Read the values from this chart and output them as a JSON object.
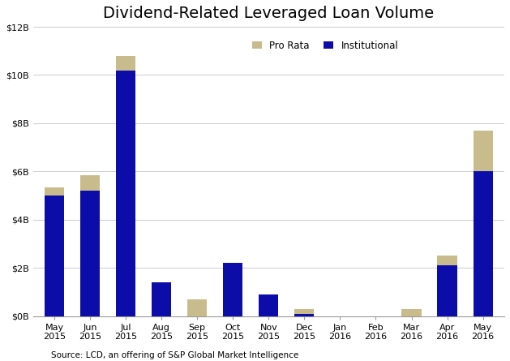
{
  "title": "Dividend-Related Leveraged Loan Volume",
  "categories": [
    "May\n2015",
    "Jun\n2015",
    "Jul\n2015",
    "Aug\n2015",
    "Sep\n2015",
    "Oct\n2015",
    "Nov\n2015",
    "Dec\n2015",
    "Jan\n2016",
    "Feb\n2016",
    "Mar\n2016",
    "Apr\n2016",
    "May\n2016"
  ],
  "institutional": [
    5.0,
    5.2,
    10.2,
    1.4,
    0.0,
    2.2,
    0.9,
    0.1,
    0.0,
    0.0,
    0.0,
    2.1,
    6.0
  ],
  "pro_rata": [
    0.35,
    0.65,
    0.6,
    0.0,
    0.7,
    0.0,
    0.0,
    0.2,
    0.0,
    0.0,
    0.3,
    0.4,
    1.7
  ],
  "institutional_color": "#0C0CA8",
  "pro_rata_color": "#C8BC8C",
  "ylim": [
    0,
    12
  ],
  "yticks": [
    0,
    2,
    4,
    6,
    8,
    10,
    12
  ],
  "ytick_labels": [
    "$0B",
    "$2B",
    "$4B",
    "$6B",
    "$8B",
    "$10B",
    "$12B"
  ],
  "source": "Source: LCD, an offering of S&P Global Market Intelligence",
  "legend_pro_rata": "Pro Rata",
  "legend_institutional": "Institutional",
  "background_color": "#FFFFFF",
  "grid_color": "#CCCCCC",
  "title_fontsize": 14,
  "tick_fontsize": 8,
  "source_fontsize": 7.5,
  "legend_fontsize": 8.5
}
